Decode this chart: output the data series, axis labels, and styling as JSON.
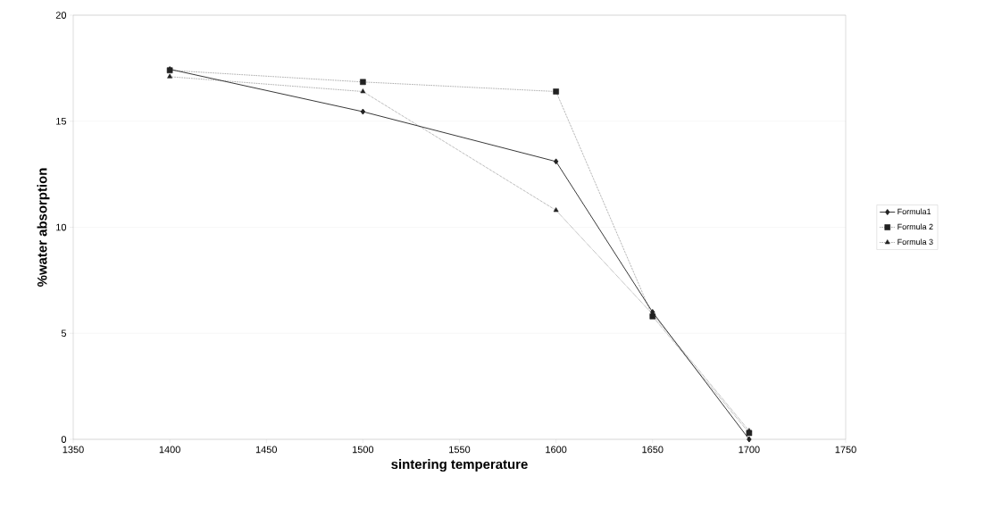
{
  "chart_data": {
    "type": "line",
    "xlabel": "sintering temperature",
    "ylabel": "%water absorption",
    "x": [
      1400,
      1500,
      1600,
      1650,
      1700
    ],
    "series": [
      {
        "name": "Formula1",
        "color": "#222222",
        "values": [
          17.45,
          15.45,
          13.1,
          6.0,
          0.0
        ],
        "marker": "diamond",
        "line_style": "solid"
      },
      {
        "name": "Formula 2",
        "color": "#222222",
        "values": [
          17.4,
          16.85,
          16.4,
          5.8,
          0.3
        ],
        "marker": "square",
        "line_style": "dotted"
      },
      {
        "name": "Formula 3",
        "color": "#222222",
        "values": [
          17.1,
          16.4,
          10.8,
          5.9,
          0.4
        ],
        "marker": "triangle",
        "line_style": "dotted"
      }
    ],
    "xlim": [
      1350,
      1750
    ],
    "xticks": [
      1350,
      1400,
      1450,
      1500,
      1550,
      1600,
      1650,
      1700,
      1750
    ],
    "ylim": [
      0,
      20
    ],
    "yticks": [
      0,
      5,
      10,
      15,
      20
    ],
    "grid": "y",
    "legend": "right"
  }
}
